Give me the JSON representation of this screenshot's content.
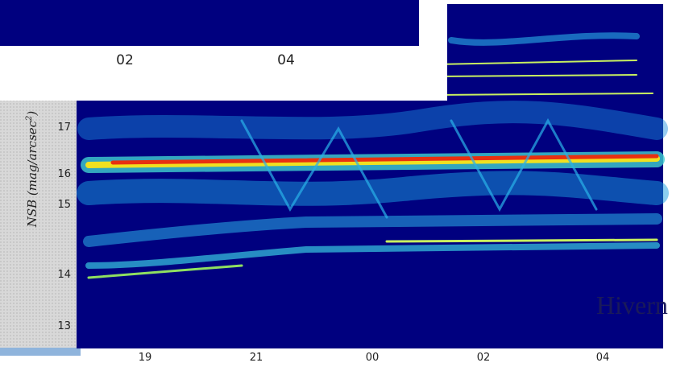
{
  "back_panel": {
    "xtick_labels": [
      "02",
      "04"
    ]
  },
  "front_chart": {
    "ylabel": {
      "main": "NSB (mag/arcsec",
      "sup": "2",
      "end": ")"
    },
    "yticks": [
      "13",
      "14",
      "15",
      "16",
      "17"
    ],
    "xticks": [
      "19",
      "21",
      "00",
      "02",
      "04"
    ],
    "annotation": "Hivern"
  }
}
